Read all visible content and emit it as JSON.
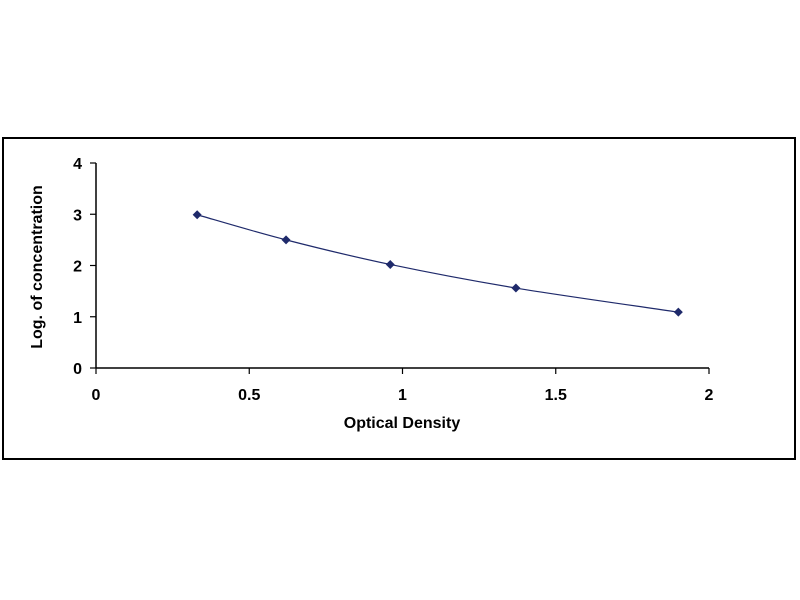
{
  "chart_data": {
    "type": "scatter",
    "title": "",
    "xlabel": "Optical Density",
    "ylabel": "Log. of concentration",
    "xlim": [
      0,
      2
    ],
    "ylim": [
      0,
      4
    ],
    "x_ticks": [
      "0",
      "0.5",
      "1",
      "1.5",
      "2"
    ],
    "y_ticks": [
      "0",
      "1",
      "2",
      "3",
      "4"
    ],
    "grid": false,
    "legend": "none",
    "series": [
      {
        "x": [
          0.33,
          0.62,
          0.96,
          1.37,
          1.9
        ],
        "y": [
          2.99,
          2.5,
          2.02,
          1.56,
          1.09
        ],
        "marker": "diamond",
        "color": "#1f2a6b",
        "trendline": "smooth"
      }
    ]
  }
}
